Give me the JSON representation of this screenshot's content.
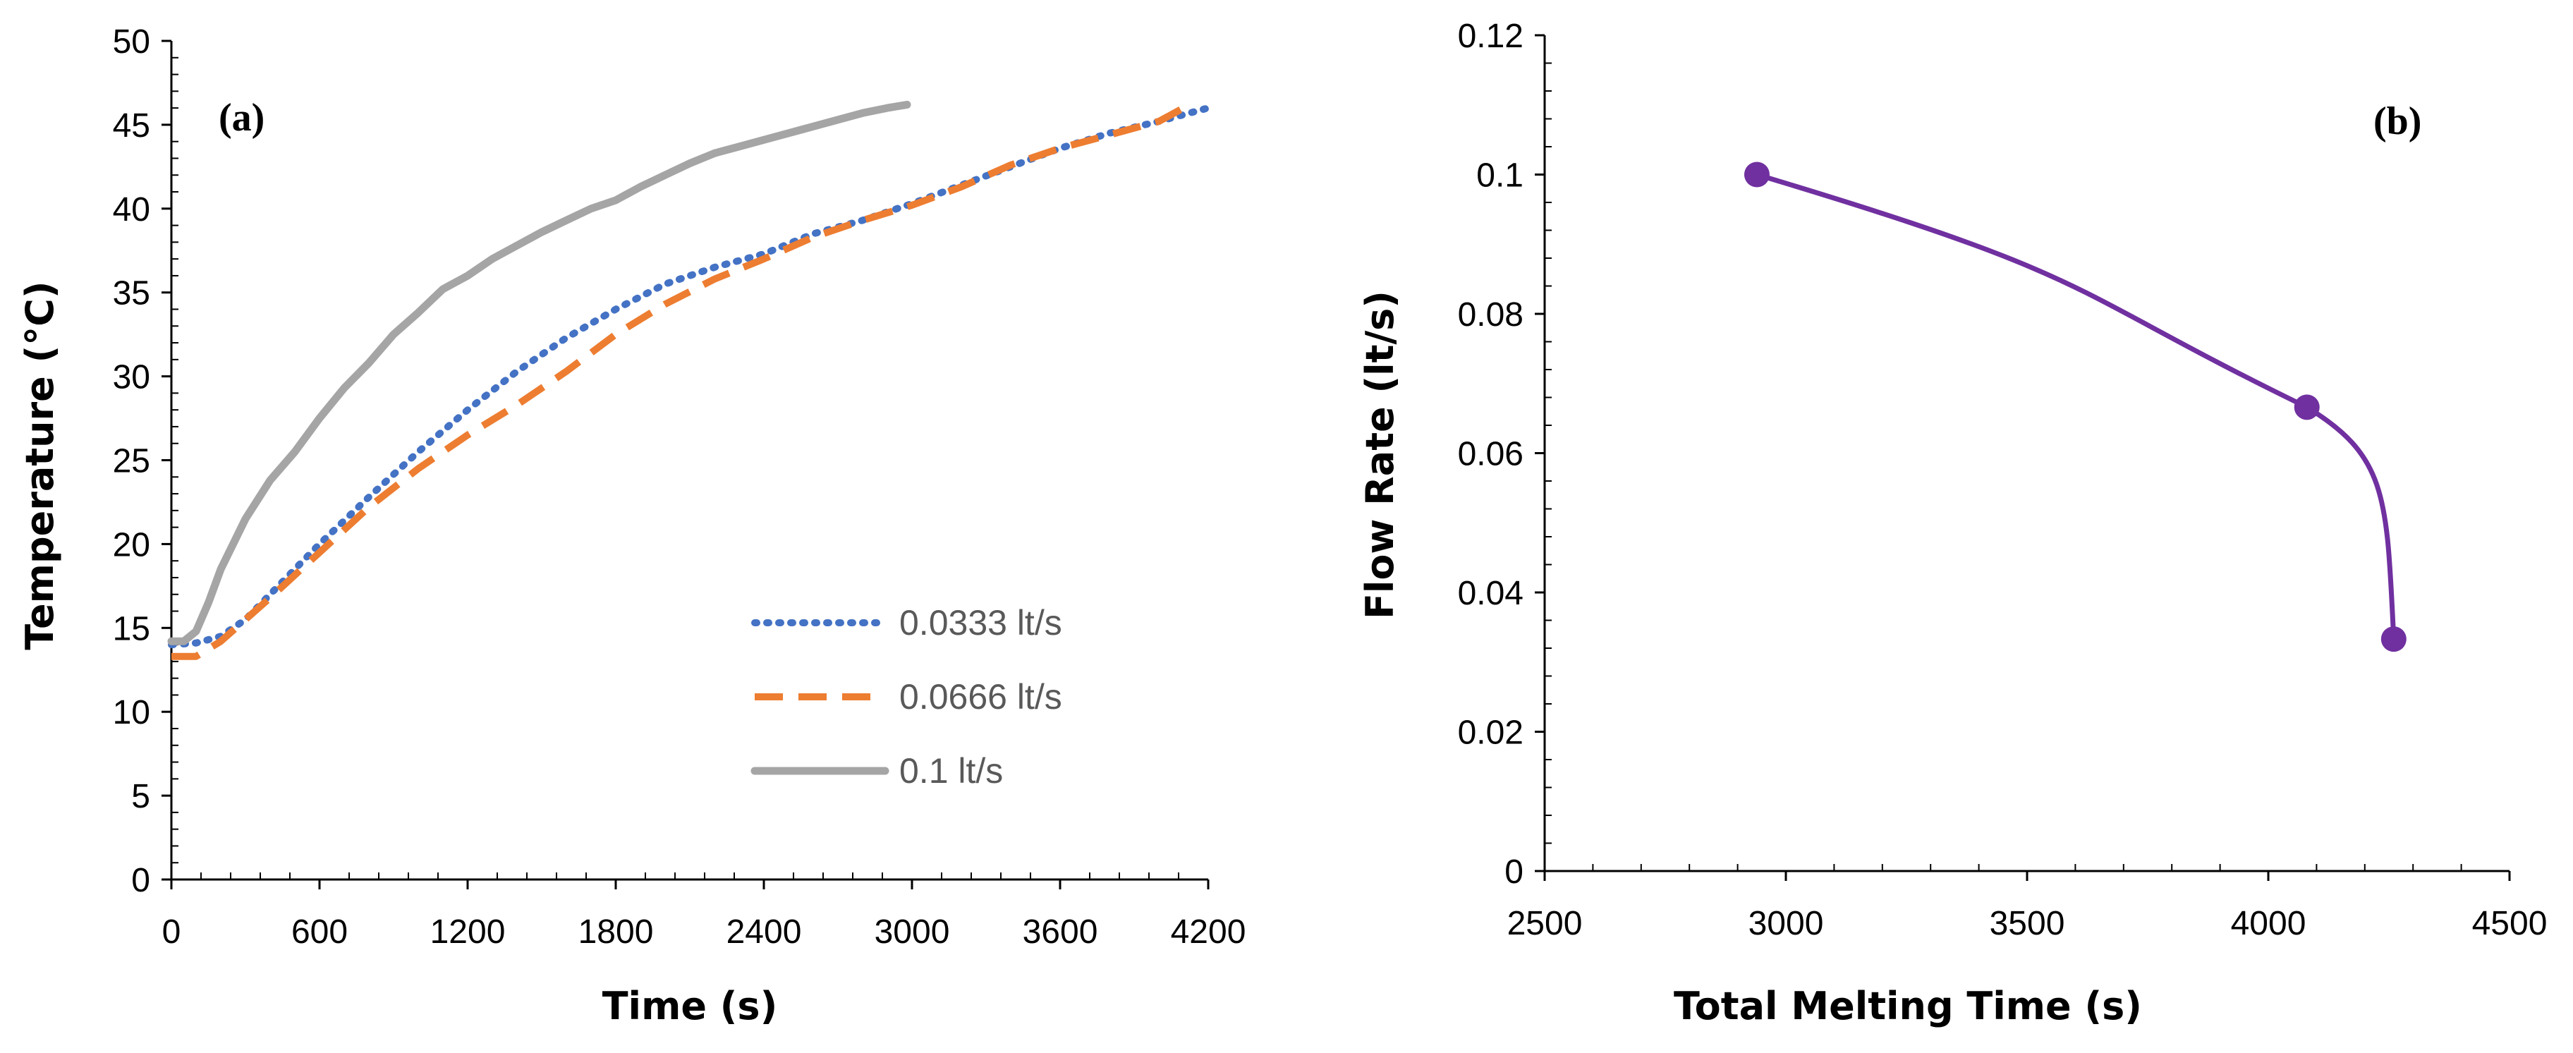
{
  "colors": {
    "axis": "#000000",
    "series_0333": "#4472C4",
    "series_0666": "#ED7D31",
    "series_01": "#A5A5A5",
    "panel_b_line": "#7030A0"
  },
  "chart_data": [
    {
      "type": "line",
      "panel_label": "(a)",
      "xlabel": "Time (s)",
      "ylabel": "Temperature (°C)",
      "xlim": [
        0,
        4200
      ],
      "ylim": [
        0,
        50
      ],
      "xticks": [
        0,
        600,
        1200,
        1800,
        2400,
        3000,
        3600,
        4200
      ],
      "yticks": [
        0,
        5,
        10,
        15,
        20,
        25,
        30,
        35,
        40,
        45,
        50
      ],
      "grid": false,
      "legend_position": "bottom-right",
      "series": [
        {
          "name": "0.0333 lt/s",
          "style": "dotted",
          "color": "#4472C4",
          "x": [
            0,
            100,
            200,
            300,
            400,
            600,
            800,
            1000,
            1200,
            1400,
            1600,
            1800,
            2000,
            2200,
            2400,
            2600,
            2800,
            3000,
            3200,
            3400,
            3600,
            3800,
            4000,
            4200
          ],
          "y": [
            14,
            14.1,
            14.5,
            15.5,
            17,
            20,
            22.8,
            25.5,
            28,
            30.3,
            32.3,
            34,
            35.5,
            36.5,
            37.3,
            38.5,
            39.3,
            40.3,
            41.4,
            42.5,
            43.6,
            44.5,
            45.2,
            46
          ]
        },
        {
          "name": "0.0666 lt/s",
          "style": "dashed",
          "color": "#ED7D31",
          "x": [
            0,
            100,
            200,
            300,
            400,
            600,
            800,
            1000,
            1200,
            1400,
            1600,
            1800,
            2000,
            2200,
            2400,
            2600,
            2800,
            3000,
            3200,
            3400,
            3600,
            3800,
            4000,
            4100
          ],
          "y": [
            13.3,
            13.3,
            14.2,
            15.5,
            16.8,
            19.5,
            22.2,
            24.5,
            26.5,
            28.3,
            30.3,
            32.5,
            34.3,
            35.8,
            37,
            38.3,
            39.3,
            40.2,
            41.3,
            42.6,
            43.6,
            44.4,
            45.2,
            46
          ]
        },
        {
          "name": "0.1 lt/s",
          "style": "solid",
          "color": "#A5A5A5",
          "x": [
            0,
            50,
            100,
            150,
            200,
            300,
            400,
            500,
            600,
            700,
            800,
            900,
            1000,
            1100,
            1200,
            1300,
            1400,
            1500,
            1600,
            1700,
            1800,
            1900,
            2000,
            2100,
            2200,
            2300,
            2400,
            2500,
            2600,
            2700,
            2800,
            2900,
            2980
          ],
          "y": [
            14.2,
            14.2,
            14.8,
            16.5,
            18.5,
            21.5,
            23.8,
            25.5,
            27.5,
            29.3,
            30.8,
            32.5,
            33.8,
            35.2,
            36,
            37,
            37.8,
            38.6,
            39.3,
            40,
            40.5,
            41.3,
            42,
            42.7,
            43.3,
            43.7,
            44.1,
            44.5,
            44.9,
            45.3,
            45.7,
            46,
            46.2
          ]
        }
      ]
    },
    {
      "type": "line",
      "panel_label": "(b)",
      "xlabel": "Total Melting Time (s)",
      "ylabel": "Flow Rate (lt/s)",
      "xlim": [
        2500,
        4500
      ],
      "ylim": [
        0,
        0.12
      ],
      "xticks": [
        2500,
        3000,
        3500,
        4000,
        4500
      ],
      "yticks": [
        0,
        0.02,
        0.04,
        0.06,
        0.08,
        0.1,
        0.12
      ],
      "ytick_labels": [
        "0",
        "0.02",
        "0.04",
        "0.06",
        "0.08",
        "0.1",
        "0.12"
      ],
      "grid": false,
      "series": [
        {
          "color": "#7030A0",
          "smooth": true,
          "x": [
            2940,
            4080,
            4260
          ],
          "y": [
            0.1,
            0.0666,
            0.0333
          ]
        }
      ]
    }
  ]
}
